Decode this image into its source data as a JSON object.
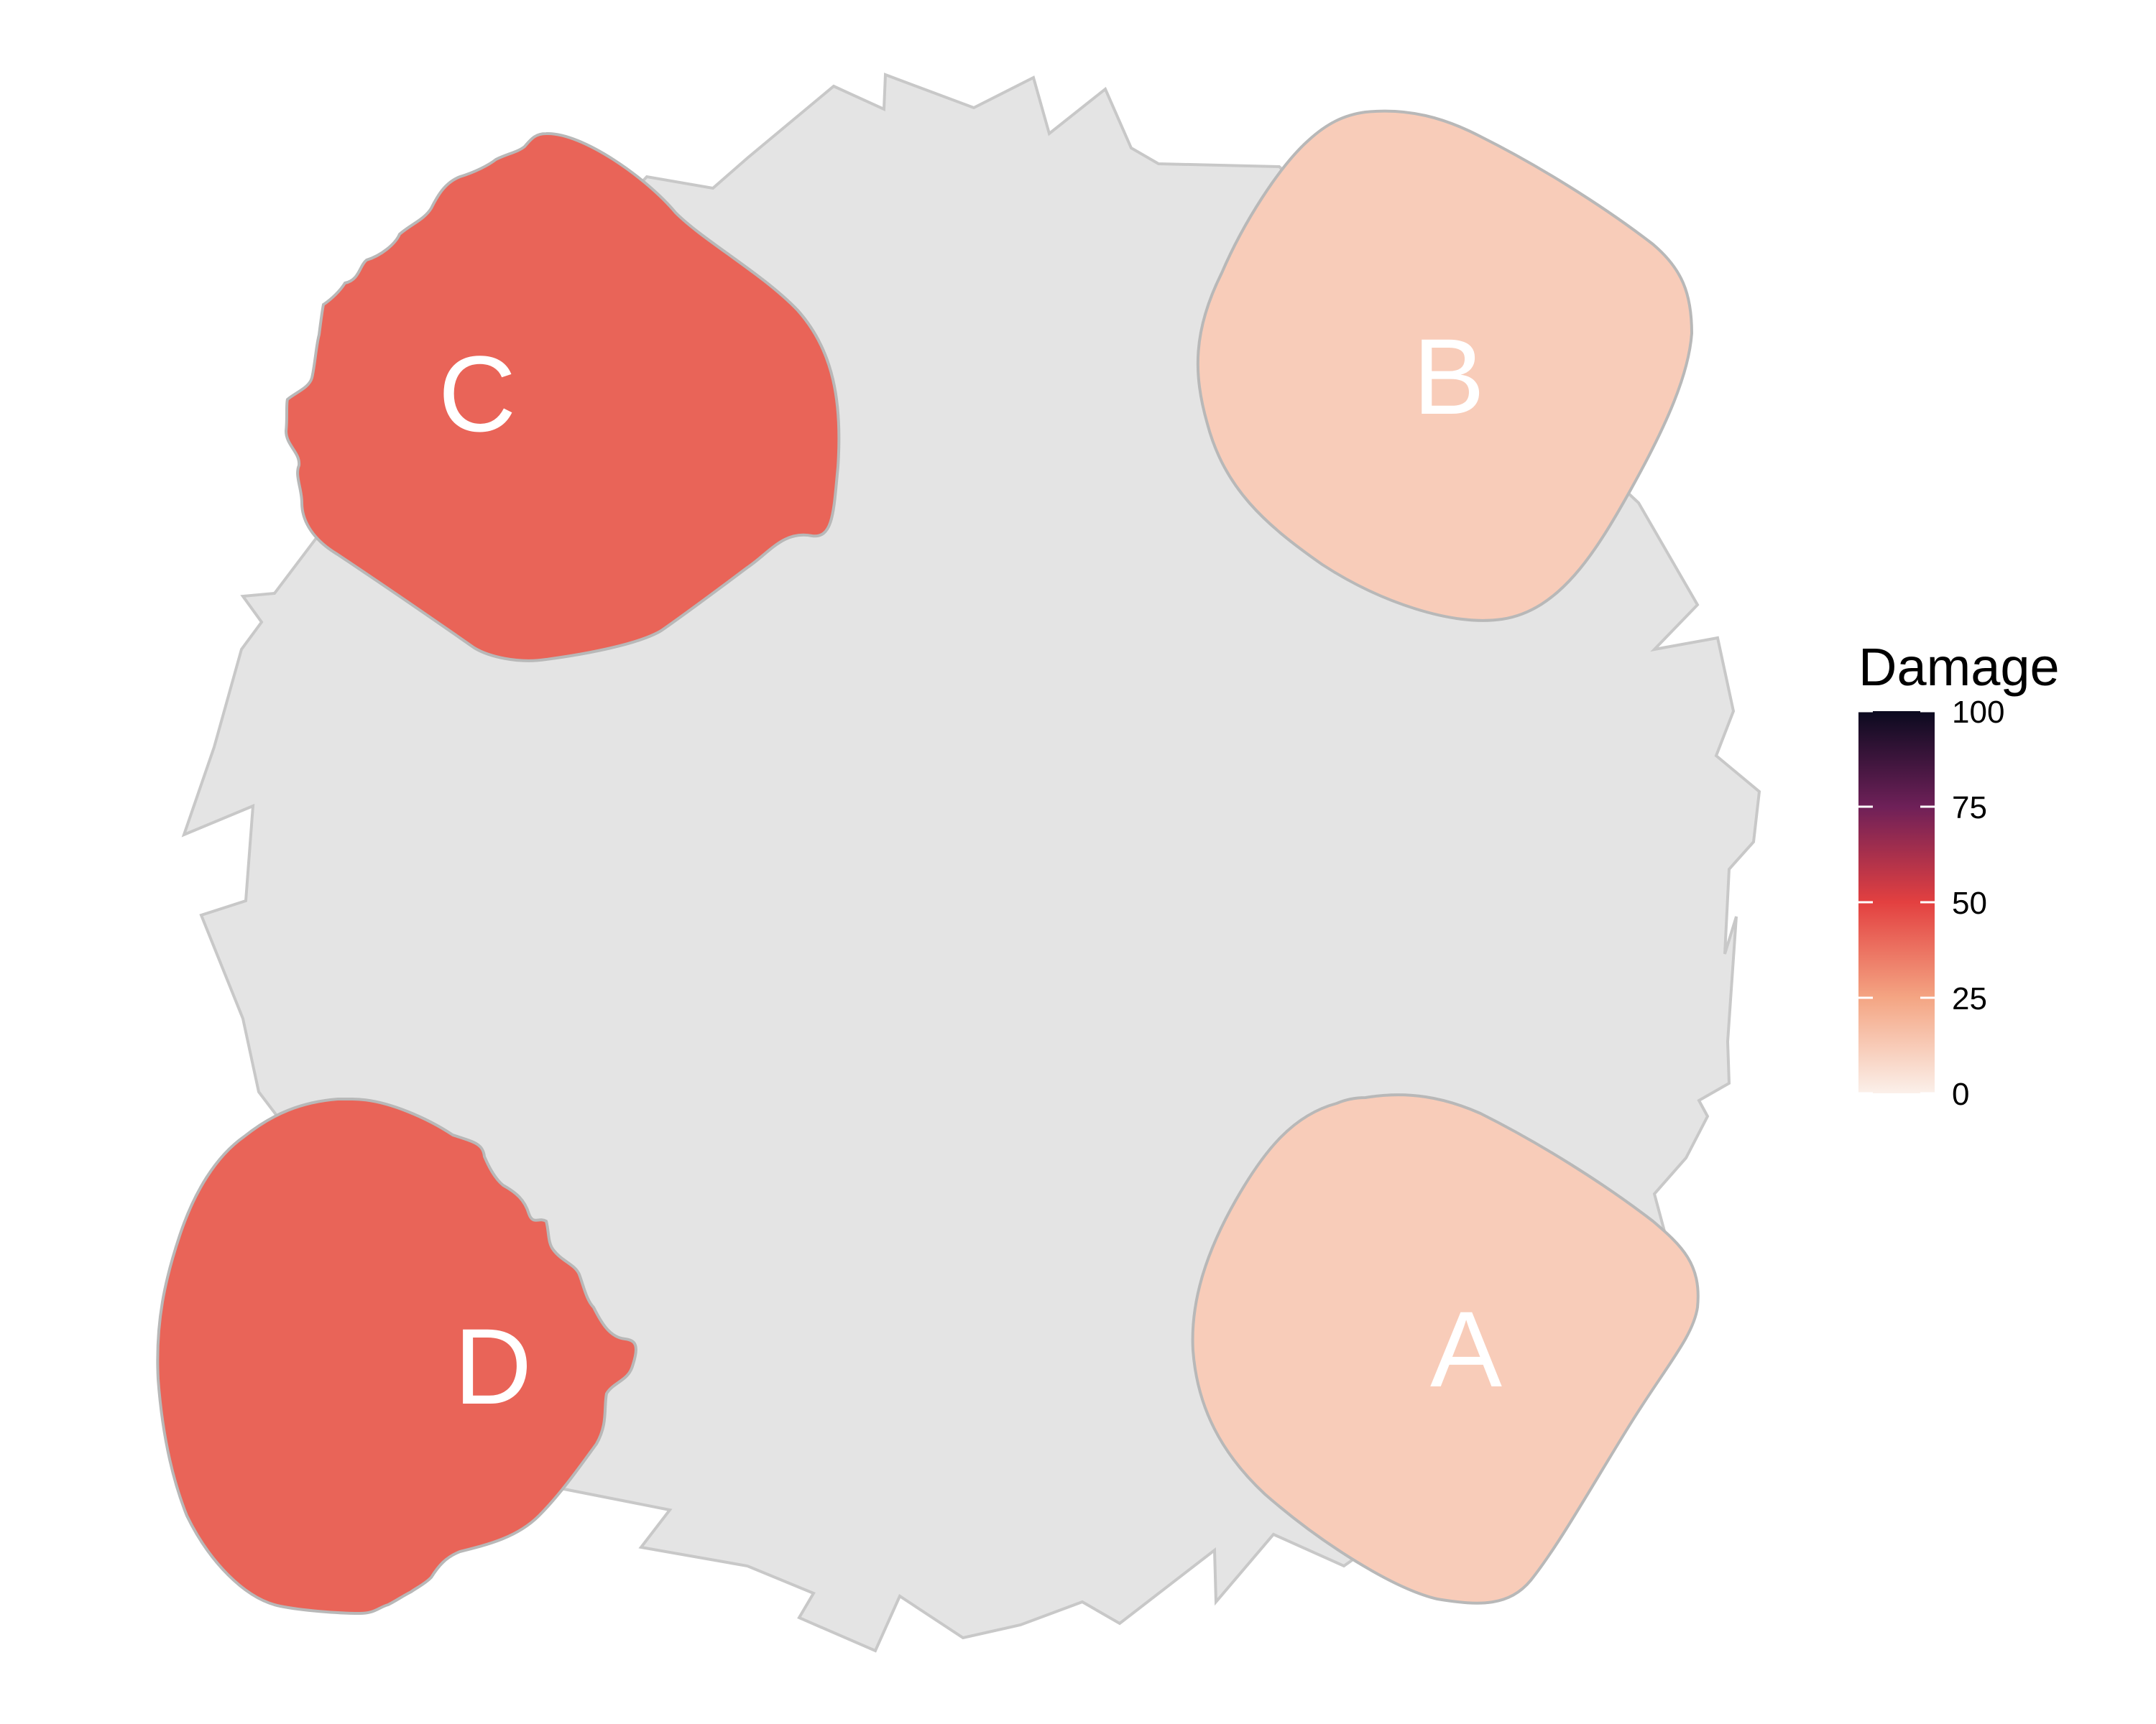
{
  "chart_data": {
    "type": "heatmap",
    "title": "",
    "xlabel": "",
    "ylabel": "",
    "regions": [
      {
        "name": "A",
        "value": 12
      },
      {
        "name": "B",
        "value": 12
      },
      {
        "name": "C",
        "value": 41
      },
      {
        "name": "D",
        "value": 41
      }
    ],
    "background_shape": {
      "fill": "#E4E4E4",
      "stroke": "#C8C8C8"
    },
    "legend": {
      "title": "Damage",
      "position": "right",
      "range": [
        0,
        100
      ],
      "ticks": [
        0,
        25,
        50,
        75,
        100
      ],
      "colorscale": [
        [
          0,
          "#FBF0EA"
        ],
        [
          25,
          "#F4A583"
        ],
        [
          50,
          "#E34040"
        ],
        [
          75,
          "#6E2058"
        ],
        [
          100,
          "#0B0A1F"
        ]
      ]
    }
  }
}
